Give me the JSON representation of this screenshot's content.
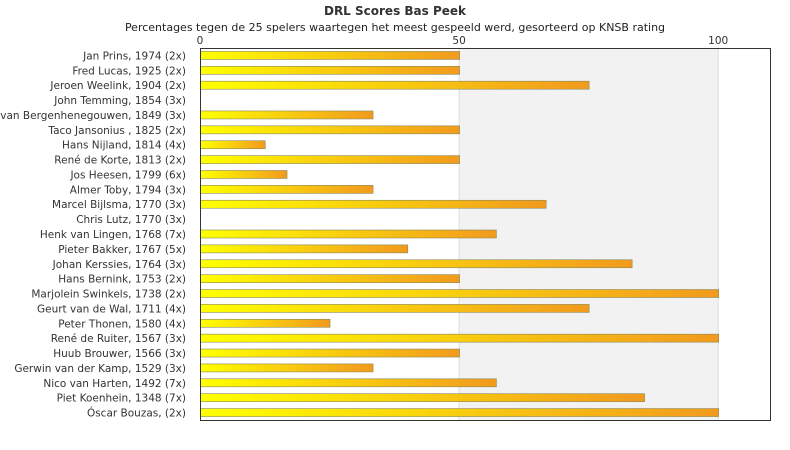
{
  "chart_data": {
    "type": "bar",
    "orientation": "horizontal",
    "title": "DRL Scores Bas Peek",
    "subtitle": "Percentages tegen de 25 spelers waartegen het meest gespeeld werd, gesorteerd op KNSB rating",
    "xlim": [
      0,
      110
    ],
    "xticks": [
      0,
      50,
      100
    ],
    "grid": true,
    "categories": [
      "Jan Prins, 1974 (2x)",
      "Fred Lucas, 1925 (2x)",
      "Jeroen Weelink, 1904 (2x)",
      "John Temming, 1854 (3x)",
      "van Bergenhenegouwen, 1849 (3x)",
      "Taco Jansonius , 1825 (2x)",
      "Hans Nijland, 1814 (4x)",
      "René de Korte, 1813 (2x)",
      "Jos Heesen, 1799 (6x)",
      "Almer Toby, 1794 (3x)",
      "Marcel Bijlsma, 1770 (3x)",
      "Chris Lutz, 1770 (3x)",
      "Henk van Lingen, 1768 (7x)",
      "Pieter Bakker, 1767 (5x)",
      "Johan Kerssies, 1764 (3x)",
      "Hans Bernink, 1753 (2x)",
      "Marjolein Swinkels, 1738 (2x)",
      "Geurt van de Wal, 1711 (4x)",
      "Peter Thonen, 1580 (4x)",
      "René de Ruiter, 1567 (3x)",
      "Huub Brouwer, 1566 (3x)",
      "Gerwin van der Kamp, 1529 (3x)",
      "Nico van Harten, 1492 (7x)",
      "Piet Koenhein, 1348 (7x)",
      "Óscar Bouzas,  (2x)"
    ],
    "values": [
      50,
      50,
      75,
      0,
      33.3,
      50,
      12.5,
      50,
      16.7,
      33.3,
      66.7,
      0,
      57.1,
      40,
      83.3,
      50,
      100,
      75,
      25,
      100,
      50,
      33.3,
      57.1,
      85.7,
      100
    ]
  }
}
